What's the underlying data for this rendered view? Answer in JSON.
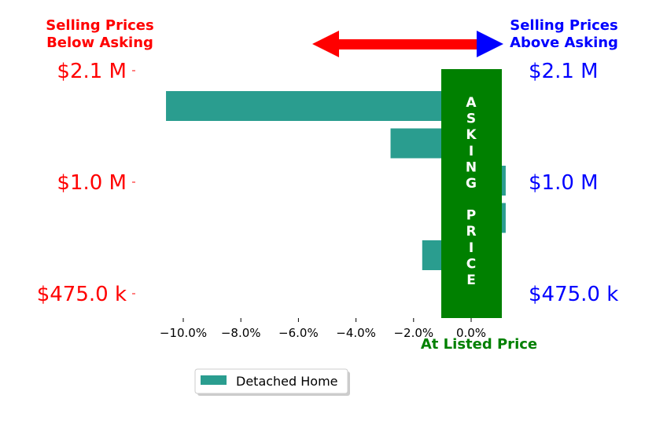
{
  "chart_data": {
    "type": "bar",
    "orientation": "horizontal",
    "title": "",
    "xlabel": "At Listed Price",
    "xlim": [
      -11.4,
      1.8
    ],
    "x_ticks": [
      -10,
      -8,
      -6,
      -4,
      -2,
      0
    ],
    "x_tick_labels": [
      "−10.0%",
      "−8.0%",
      "−6.0%",
      "−4.0%",
      "−2.0%",
      "0.0%"
    ],
    "y_tick_labels_left": [
      "$2.1 M",
      "$1.0 M",
      "$475.0 k"
    ],
    "y_tick_labels_right": [
      "$2.1 M",
      "$1.0 M",
      "$475.0 k"
    ],
    "series": [
      {
        "name": "Detached Home",
        "color": "#2a9d8f",
        "values": [
          -10.6,
          -2.8,
          1.2,
          1.2,
          -1.7,
          -1.0
        ]
      }
    ],
    "left_header": "Selling Prices\nBelow Asking",
    "right_header": "Selling Prices\nAbove Asking",
    "center_band_label": "ASKING  PRICE",
    "center_band_color": "#008000",
    "left_color": "#ff0000",
    "right_color": "#0000ff",
    "legend_position": "bottom-left",
    "grid": false
  }
}
